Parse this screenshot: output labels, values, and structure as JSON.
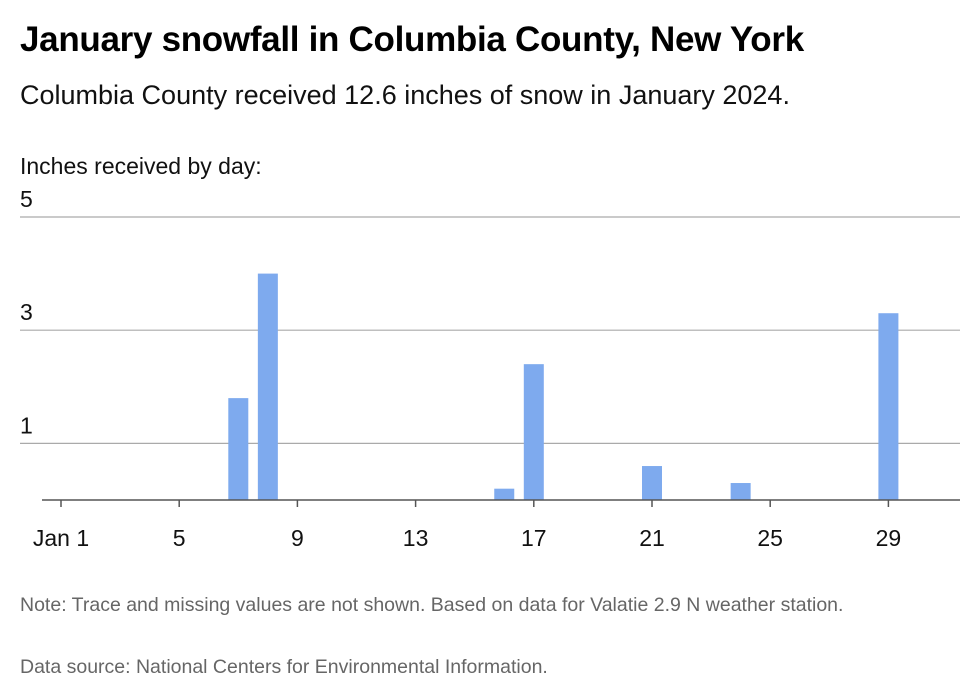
{
  "title": "January snowfall in Columbia County, New York",
  "subtitle": "Columbia County received 12.6 inches of snow in January 2024.",
  "y_axis_label": "Inches received by day:",
  "note": "Note: Trace and missing values are not shown. Based on data for Valatie 2.9 N weather station.",
  "source": "Data source: National Centers for Environmental Information.",
  "colors": {
    "bar": "#7eaaee",
    "grid": "#aaaaaa",
    "axis": "#555555"
  },
  "chart_data": {
    "type": "bar",
    "title": "January snowfall in Columbia County, New York",
    "ylabel": "Inches received by day:",
    "xlabel": "",
    "x": [
      7,
      8,
      16,
      17,
      21,
      24,
      29
    ],
    "values": [
      1.8,
      4.0,
      0.2,
      2.4,
      0.6,
      0.3,
      3.3
    ],
    "x_range": [
      1,
      31
    ],
    "x_ticks": [
      1,
      5,
      9,
      13,
      17,
      21,
      25,
      29
    ],
    "x_tick_labels": [
      "Jan 1",
      "5",
      "9",
      "13",
      "17",
      "21",
      "25",
      "29"
    ],
    "ylim": [
      0,
      5
    ],
    "y_ticks": [
      1,
      3,
      5
    ],
    "grid": true,
    "legend": "none"
  }
}
